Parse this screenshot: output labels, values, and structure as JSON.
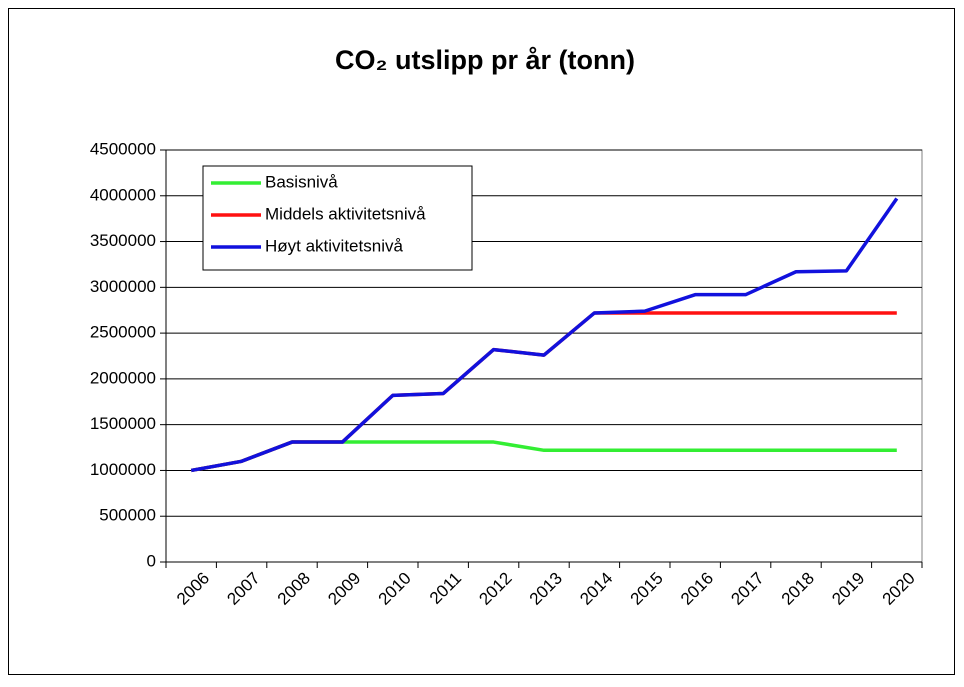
{
  "chart_data": {
    "type": "line",
    "title": "CO₂ utslipp pr år (tonn)",
    "categories": [
      "2006",
      "2007",
      "2008",
      "2009",
      "2010",
      "2011",
      "2012",
      "2013",
      "2014",
      "2015",
      "2016",
      "2017",
      "2018",
      "2019",
      "2020"
    ],
    "series": [
      {
        "name": "Basisnivå",
        "color": "#33ee33",
        "values": [
          1000000,
          1100000,
          1310000,
          1310000,
          1310000,
          1310000,
          1310000,
          1220000,
          1220000,
          1220000,
          1220000,
          1220000,
          1220000,
          1220000,
          1220000
        ]
      },
      {
        "name": "Middels aktivitetsnivå",
        "color": "#ff1111",
        "values": [
          1000000,
          1100000,
          1310000,
          1310000,
          1820000,
          1840000,
          2320000,
          2260000,
          2720000,
          2720000,
          2720000,
          2720000,
          2720000,
          2720000,
          2720000
        ]
      },
      {
        "name": "Høyt aktivitetsnivå",
        "color": "#1111dd",
        "values": [
          1000000,
          1100000,
          1310000,
          1310000,
          1820000,
          1840000,
          2320000,
          2260000,
          2720000,
          2740000,
          2920000,
          2920000,
          3170000,
          3180000,
          3970000
        ]
      }
    ],
    "ylim": [
      0,
      4500000
    ],
    "yticks": [
      0,
      500000,
      1000000,
      1500000,
      2000000,
      2500000,
      3000000,
      3500000,
      4000000,
      4500000
    ],
    "grid": true,
    "legend": "top-left"
  }
}
